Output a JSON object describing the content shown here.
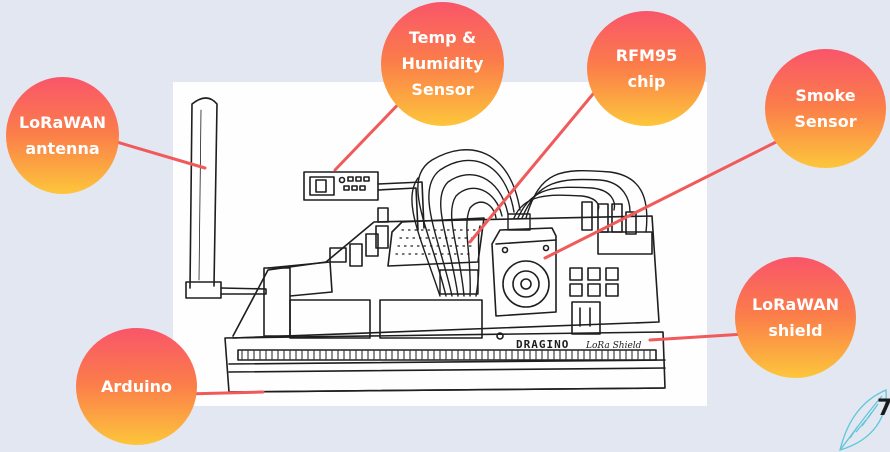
{
  "labels": {
    "lorawan_antenna": "LoRaWAN\nantenna",
    "temp_humidity_sensor": "Temp &\nHumidity\nSensor",
    "rfm95_chip": "RFM95\nchip",
    "smoke_sensor": "Smoke\nSensor",
    "lorawan_shield": "LoRaWAN\nshield",
    "arduino": "Arduino"
  },
  "drawing_text": {
    "brand": "DRAGINO",
    "shield_text": "LoRa Shield"
  },
  "page_number": "7",
  "colors": {
    "background": "#e3e7f2",
    "connector": "#f05a5a",
    "bubble_top": "#f9556a",
    "bubble_bottom": "#fdc63b",
    "sketch_ink": "#1e1e1e"
  }
}
